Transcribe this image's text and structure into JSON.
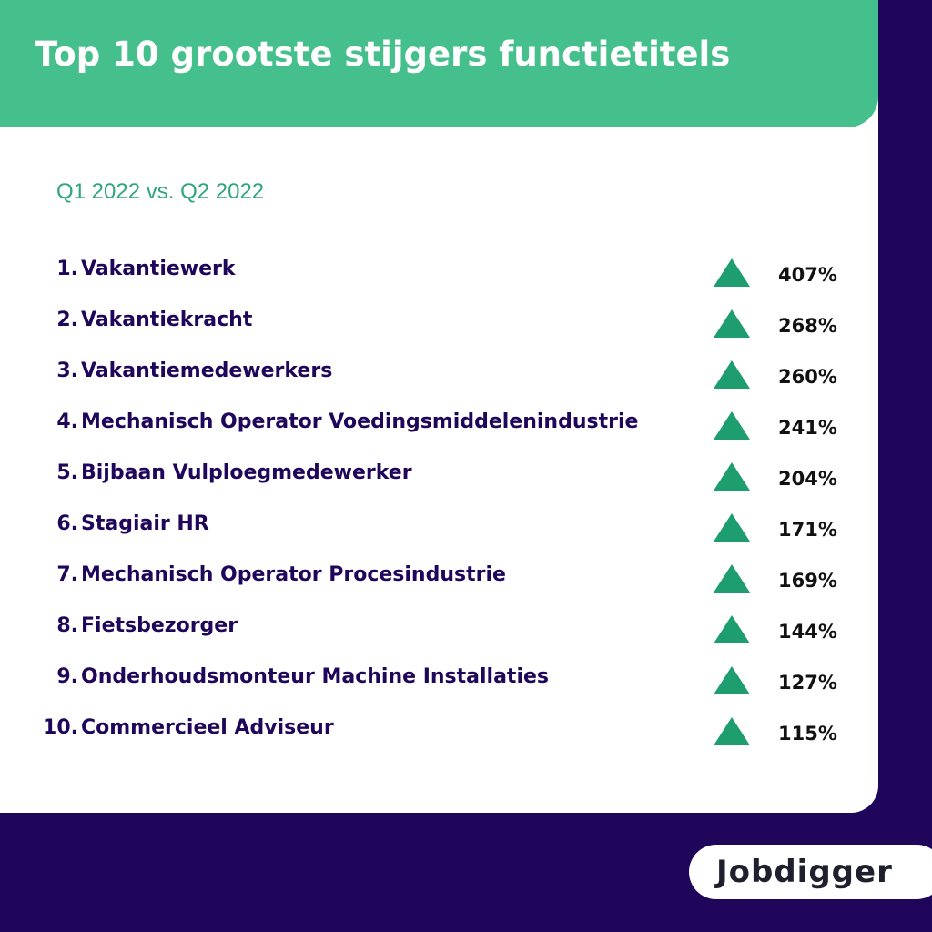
{
  "header": {
    "title": "Top 10 grootste stijgers functietitels"
  },
  "subtitle": "Q1 2022 vs. Q2 2022",
  "list": {
    "items": [
      {
        "rank": "1.",
        "name": "Vakantiewerk",
        "change": "407%"
      },
      {
        "rank": "2.",
        "name": "Vakantiekracht",
        "change": "268%"
      },
      {
        "rank": "3.",
        "name": "Vakantiemedewerkers",
        "change": "260%"
      },
      {
        "rank": "4.",
        "name": "Mechanisch Operator Voedingsmiddelenindustrie",
        "change": "241%"
      },
      {
        "rank": "5.",
        "name": "Bijbaan Vulploegmedewerker",
        "change": "204%"
      },
      {
        "rank": "6.",
        "name": "Stagiair HR",
        "change": "171%"
      },
      {
        "rank": "7.",
        "name": "Mechanisch Operator Procesindustrie",
        "change": "169%"
      },
      {
        "rank": "8.",
        "name": "Fietsbezorger",
        "change": "144%"
      },
      {
        "rank": "9.",
        "name": "Onderhoudsmonteur Machine Installaties",
        "change": "127%"
      },
      {
        "rank": "10.",
        "name": "Commercieel Adviseur",
        "change": "115%"
      }
    ]
  },
  "logo": "Jobdigger"
}
